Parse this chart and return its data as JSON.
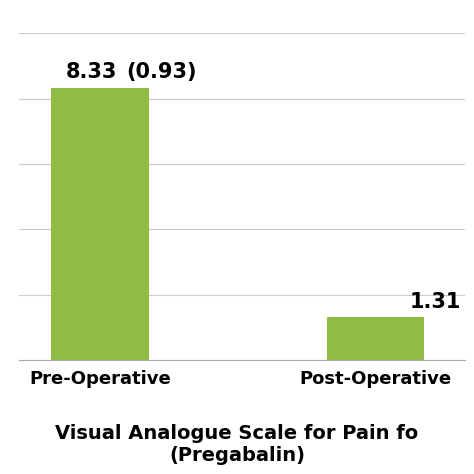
{
  "categories": [
    "Pre-Operative",
    "Post-Operative"
  ],
  "values": [
    8.33,
    1.31
  ],
  "bar_color": "#8fbc45",
  "title_line1": "Visual Analogue Scale for Pain fo",
  "title_line2": "(Pregabalin)",
  "ylim": [
    0,
    10
  ],
  "ytick_positions": [
    0,
    2,
    4,
    6,
    8,
    10
  ],
  "bar_width": 0.6,
  "value_label_1": "8.33",
  "std_label_1": "(0.93)",
  "value_label_2": "1.31",
  "background_color": "#ffffff",
  "grid_color": "#cccccc",
  "label_fontsize": 13,
  "title_fontsize": 14,
  "value_fontsize": 15,
  "x_positions": [
    0.5,
    2.2
  ],
  "xlim": [
    0.0,
    2.75
  ]
}
